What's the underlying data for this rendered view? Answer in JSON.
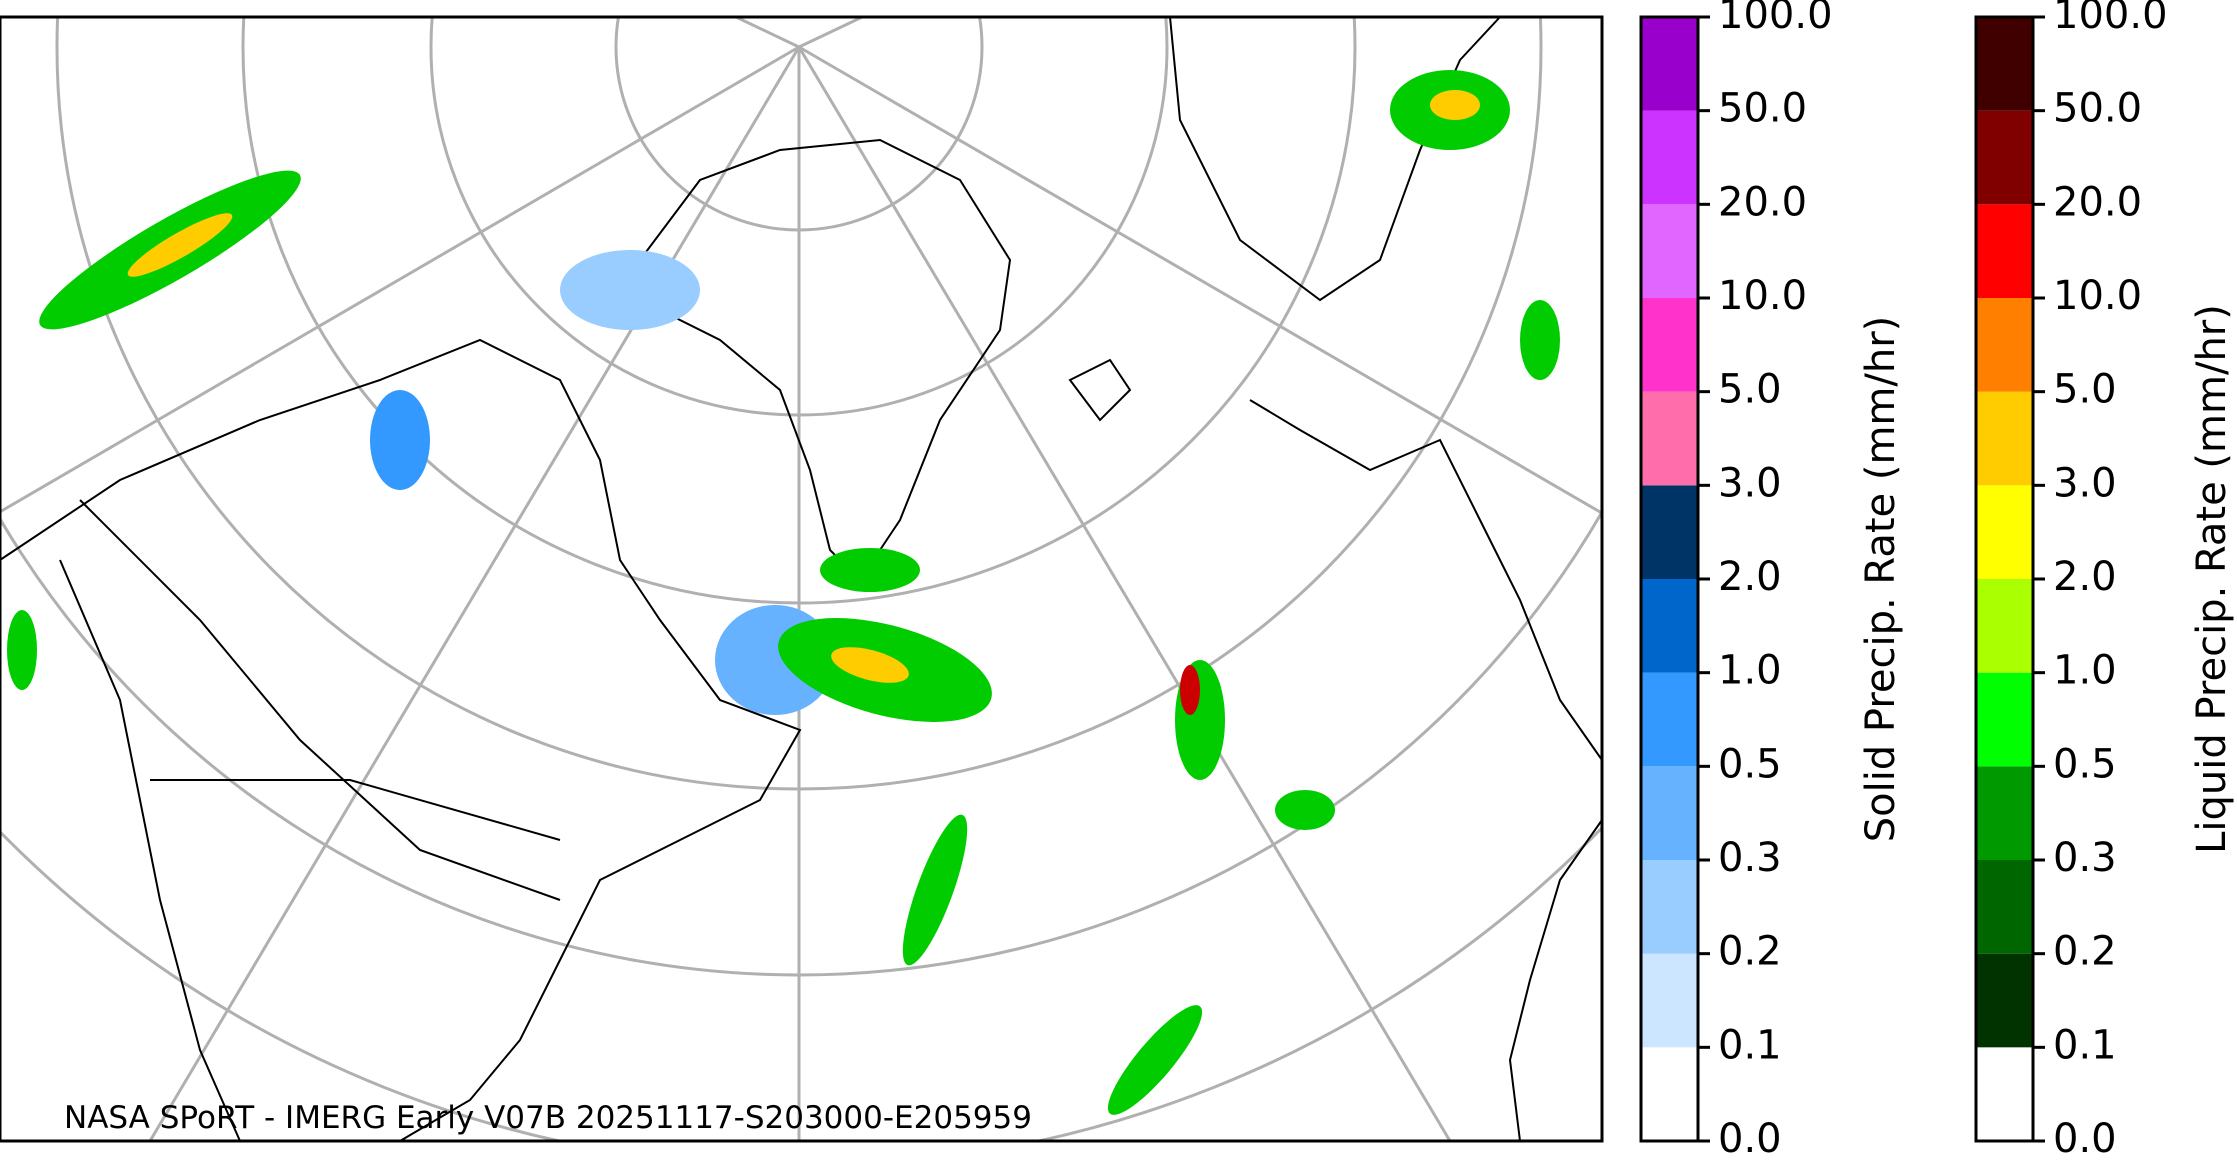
{
  "caption": "NASA SPoRT - IMERG Early V07B 20251117-S203000-E205959",
  "colorbars": [
    {
      "label": "Solid Precip. Rate (mm/hr)",
      "ticks": [
        {
          "value": 0,
          "label": "0.0"
        },
        {
          "value": 0.1,
          "label": "0.1"
        },
        {
          "value": 0.2,
          "label": "0.2"
        },
        {
          "value": 0.3,
          "label": "0.3"
        },
        {
          "value": 0.5,
          "label": "0.5"
        },
        {
          "value": 1,
          "label": "1.0"
        },
        {
          "value": 2,
          "label": "2.0"
        },
        {
          "value": 3,
          "label": "3.0"
        },
        {
          "value": 5,
          "label": "5.0"
        },
        {
          "value": 10,
          "label": "10.0"
        },
        {
          "value": 20,
          "label": "20.0"
        },
        {
          "value": 50,
          "label": "50.0"
        },
        {
          "value": 100,
          "label": "100.0"
        }
      ],
      "colors": [
        "#ffffff",
        "#cce6ff",
        "#99ccff",
        "#66b2ff",
        "#3399ff",
        "#0066cc",
        "#003366",
        "#ff6eaa",
        "#ff33cc",
        "#e066ff",
        "#cc33ff",
        "#9900cc"
      ]
    },
    {
      "label": "Liquid Precip. Rate (mm/hr)",
      "ticks": [
        {
          "value": 0,
          "label": "0.0"
        },
        {
          "value": 0.1,
          "label": "0.1"
        },
        {
          "value": 0.2,
          "label": "0.2"
        },
        {
          "value": 0.3,
          "label": "0.3"
        },
        {
          "value": 0.5,
          "label": "0.5"
        },
        {
          "value": 1,
          "label": "1.0"
        },
        {
          "value": 2,
          "label": "2.0"
        },
        {
          "value": 3,
          "label": "3.0"
        },
        {
          "value": 5,
          "label": "5.0"
        },
        {
          "value": 10,
          "label": "10.0"
        },
        {
          "value": 20,
          "label": "20.0"
        },
        {
          "value": 50,
          "label": "50.0"
        },
        {
          "value": 100,
          "label": "100.0"
        }
      ],
      "colors": [
        "#ffffff",
        "#003300",
        "#006600",
        "#009900",
        "#00ff00",
        "#aaff00",
        "#ffff00",
        "#ffcc00",
        "#ff8000",
        "#ff0000",
        "#800000",
        "#400000"
      ]
    }
  ]
}
